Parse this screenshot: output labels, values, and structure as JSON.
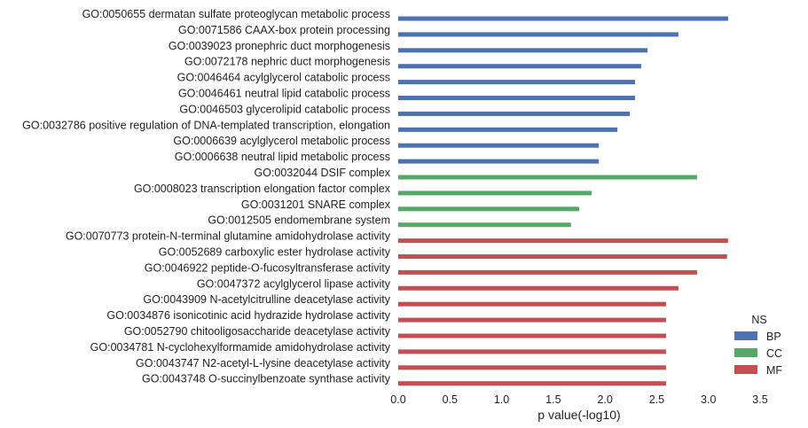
{
  "chart_data": {
    "type": "bar",
    "orientation": "horizontal",
    "xlabel": "p value(-log10)",
    "ylabel": "",
    "xlim": [
      0,
      3.5
    ],
    "x_ticks": [
      "0.0",
      "0.5",
      "1.0",
      "1.5",
      "2.0",
      "2.5",
      "3.0",
      "3.5"
    ],
    "grid": false,
    "legend": {
      "title": "NS",
      "placement": "bottom-right",
      "entries": [
        {
          "name": "BP",
          "color": "#4c72b0"
        },
        {
          "name": "CC",
          "color": "#55a868"
        },
        {
          "name": "MF",
          "color": "#c44e52"
        }
      ]
    },
    "categories": [
      {
        "label": "GO:0050655 dermatan sulfate proteoglycan metabolic process",
        "ns": "BP",
        "value": 3.19
      },
      {
        "label": "GO:0071586 CAAX-box protein processing",
        "ns": "BP",
        "value": 2.71
      },
      {
        "label": "GO:0039023 pronephric duct morphogenesis",
        "ns": "BP",
        "value": 2.41
      },
      {
        "label": "GO:0072178 nephric duct morphogenesis",
        "ns": "BP",
        "value": 2.35
      },
      {
        "label": "GO:0046464 acylglycerol catabolic process",
        "ns": "BP",
        "value": 2.29
      },
      {
        "label": "GO:0046461 neutral lipid catabolic process",
        "ns": "BP",
        "value": 2.29
      },
      {
        "label": "GO:0046503 glycerolipid catabolic process",
        "ns": "BP",
        "value": 2.24
      },
      {
        "label": "GO:0032786 positive regulation of DNA-templated transcription, elongation",
        "ns": "BP",
        "value": 2.12
      },
      {
        "label": "GO:0006639 acylglycerol metabolic process",
        "ns": "BP",
        "value": 1.94
      },
      {
        "label": "GO:0006638 neutral lipid metabolic process",
        "ns": "BP",
        "value": 1.94
      },
      {
        "label": "GO:0032044 DSIF complex",
        "ns": "CC",
        "value": 2.89
      },
      {
        "label": "GO:0008023 transcription elongation factor complex",
        "ns": "CC",
        "value": 1.87
      },
      {
        "label": "GO:0031201 SNARE complex",
        "ns": "CC",
        "value": 1.75
      },
      {
        "label": "GO:0012505 endomembrane system",
        "ns": "CC",
        "value": 1.67
      },
      {
        "label": "GO:0070773 protein-N-terminal glutamine amidohydrolase activity",
        "ns": "MF",
        "value": 3.19
      },
      {
        "label": "GO:0052689 carboxylic ester hydrolase activity",
        "ns": "MF",
        "value": 3.18
      },
      {
        "label": "GO:0046922 peptide-O-fucosyltransferase activity",
        "ns": "MF",
        "value": 2.89
      },
      {
        "label": "GO:0047372 acylglycerol lipase activity",
        "ns": "MF",
        "value": 2.71
      },
      {
        "label": "GO:0043909 N-acetylcitrulline deacetylase activity",
        "ns": "MF",
        "value": 2.59
      },
      {
        "label": "GO:0034876 isonicotinic acid hydrazide hydrolase activity",
        "ns": "MF",
        "value": 2.59
      },
      {
        "label": "GO:0052790 chitooligosaccharide deacetylase activity",
        "ns": "MF",
        "value": 2.59
      },
      {
        "label": "GO:0034781 N-cyclohexylformamide amidohydrolase activity",
        "ns": "MF",
        "value": 2.59
      },
      {
        "label": "GO:0043747 N2-acetyl-L-lysine deacetylase activity",
        "ns": "MF",
        "value": 2.59
      },
      {
        "label": "GO:0043748 O-succinylbenzoate synthase activity",
        "ns": "MF",
        "value": 2.59
      }
    ]
  }
}
